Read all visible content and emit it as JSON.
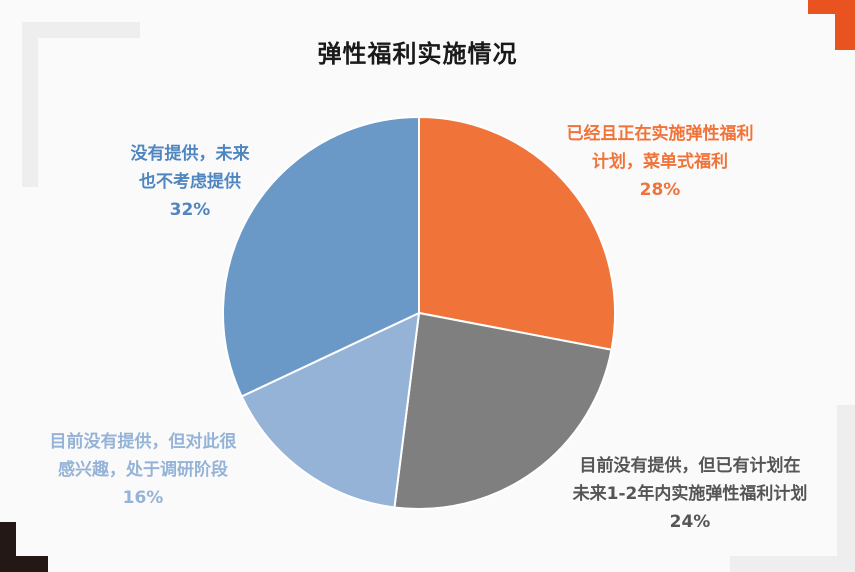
{
  "chart_data": {
    "type": "pie",
    "title": "弹性福利实施情况",
    "start_angle_deg": 0,
    "direction": "clockwise",
    "slices": [
      {
        "name_lines": [
          "已经且正在实施弹性福利",
          "计划，菜单式福利"
        ],
        "value": 28,
        "value_label": "28%",
        "color": "#f07339",
        "label_color": "#f07339"
      },
      {
        "name_lines": [
          "目前没有提供，但已有计划在",
          "未来1-2年内实施弹性福利计划"
        ],
        "value": 24,
        "value_label": "24%",
        "color": "#7f7f7f",
        "label_color": "#555555"
      },
      {
        "name_lines": [
          "目前没有提供，但对此很",
          "感兴趣，处于调研阶段"
        ],
        "value": 16,
        "value_label": "16%",
        "color": "#95b3d7",
        "label_color": "#95b3d7"
      },
      {
        "name_lines": [
          "没有提供，未来",
          "也不考虑提供"
        ],
        "value": 32,
        "value_label": "32%",
        "color": "#6a98c7",
        "label_color": "#4f86c0"
      }
    ]
  }
}
